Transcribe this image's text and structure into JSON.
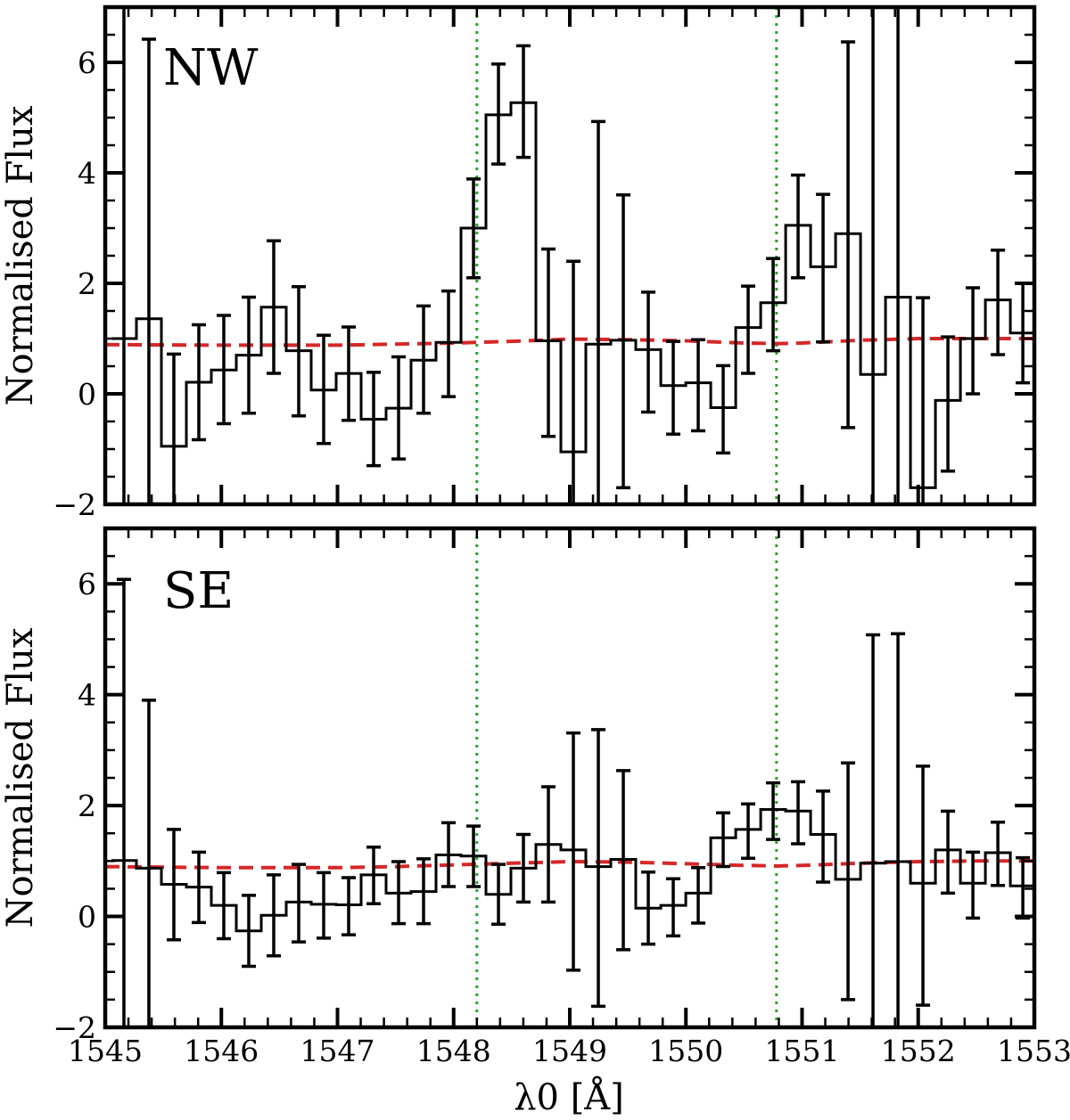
{
  "chart_data": {
    "type": "line",
    "xlabel": "λ0 [Å]",
    "ylabel": "Normalised Flux",
    "xlim": [
      1545,
      1553
    ],
    "ylim": [
      -2,
      7
    ],
    "x_ticks": [
      "1545",
      "1546",
      "1547",
      "1548",
      "1549",
      "1550",
      "1551",
      "1552",
      "1553"
    ],
    "y_ticks": [
      "−2",
      "0",
      "2",
      "4",
      "6"
    ],
    "y_tick_values": [
      -2,
      0,
      2,
      4,
      6
    ],
    "x_tick_values": [
      1545,
      1546,
      1547,
      1548,
      1549,
      1550,
      1551,
      1552,
      1553
    ],
    "bin_start": 1545.161,
    "bin_width": 0.215,
    "reference_lines": [
      1548.2,
      1550.78
    ],
    "model_x": [
      1545,
      1546,
      1547,
      1547.5,
      1548,
      1548.5,
      1549,
      1549.5,
      1550,
      1550.5,
      1550.8,
      1551,
      1551.5,
      1552,
      1552.5,
      1553
    ],
    "colors": {
      "data": "#000000",
      "model": "#d62728",
      "reference": "#2ca02c"
    },
    "panels": [
      {
        "label": "NW",
        "flux": [
          1.0,
          1.36,
          -0.95,
          0.21,
          0.43,
          0.7,
          1.57,
          0.78,
          0.07,
          0.37,
          -0.46,
          -0.26,
          0.61,
          0.93,
          3.0,
          5.05,
          5.27,
          0.96,
          -1.05,
          0.9,
          0.97,
          0.8,
          0.15,
          0.2,
          -0.25,
          1.2,
          1.65,
          3.05,
          2.3,
          2.9,
          0.35,
          1.75,
          -1.7,
          -0.12,
          1.0,
          1.7,
          1.1
        ],
        "err_lo": [
          -5,
          -5,
          -3,
          -0.83,
          -0.54,
          -0.35,
          0.37,
          -0.4,
          -0.9,
          -0.48,
          -1.3,
          -1.18,
          -0.35,
          -0.05,
          2.1,
          4.16,
          4.28,
          -0.77,
          -3,
          -4,
          -1.7,
          -0.33,
          -0.73,
          -0.67,
          -1.07,
          0.37,
          0.78,
          2.1,
          0.94,
          -0.61,
          -5,
          -5,
          -4,
          -1.4,
          0.0,
          0.71,
          0.2
        ],
        "err_hi": [
          10,
          6.42,
          0.72,
          1.25,
          1.42,
          1.75,
          2.77,
          1.94,
          1.06,
          1.21,
          0.39,
          0.67,
          1.59,
          1.86,
          3.89,
          5.97,
          6.3,
          2.62,
          2.4,
          4.93,
          3.6,
          1.84,
          0.95,
          0.98,
          0.51,
          1.95,
          2.45,
          3.96,
          3.61,
          6.37,
          10,
          10,
          1.74,
          1.03,
          1.92,
          2.6,
          2.0
        ],
        "model_y": [
          0.89,
          0.88,
          0.88,
          0.9,
          0.92,
          0.95,
          0.99,
          0.98,
          0.96,
          0.92,
          0.91,
          0.92,
          0.97,
          1.0,
          1.0,
          1.0
        ]
      },
      {
        "label": "SE",
        "flux": [
          1.01,
          0.87,
          0.58,
          0.53,
          0.2,
          -0.26,
          0.02,
          0.26,
          0.22,
          0.21,
          0.75,
          0.42,
          0.45,
          1.11,
          1.09,
          0.4,
          0.87,
          1.3,
          1.2,
          0.9,
          1.03,
          0.15,
          0.2,
          0.42,
          1.42,
          1.57,
          1.93,
          1.9,
          1.48,
          0.67,
          0.96,
          0.99,
          0.6,
          1.2,
          0.6,
          1.15,
          0.55
        ],
        "err_lo": [
          -5,
          -4,
          -0.42,
          -0.11,
          -0.4,
          -0.9,
          -0.71,
          -0.46,
          -0.39,
          -0.33,
          0.23,
          -0.13,
          -0.13,
          0.54,
          0.54,
          -0.14,
          0.26,
          0.26,
          -0.97,
          -1.62,
          -0.6,
          -0.5,
          -0.35,
          -0.12,
          0.9,
          1.05,
          1.39,
          1.31,
          0.62,
          -1.5,
          -4,
          -4,
          -1.6,
          0.42,
          -0.03,
          0.56,
          -0.03
        ],
        "err_hi": [
          6.08,
          3.9,
          1.57,
          1.16,
          0.79,
          0.38,
          0.75,
          0.94,
          0.79,
          0.7,
          1.25,
          0.99,
          1.04,
          1.69,
          1.63,
          0.94,
          1.48,
          2.34,
          3.31,
          3.37,
          2.63,
          0.8,
          0.68,
          0.88,
          1.87,
          2.03,
          2.41,
          2.43,
          2.26,
          2.77,
          5.08,
          5.1,
          2.71,
          1.9,
          1.16,
          1.7,
          1.06
        ],
        "model_y": [
          0.9,
          0.88,
          0.88,
          0.9,
          0.93,
          0.96,
          0.99,
          0.98,
          0.95,
          0.92,
          0.91,
          0.92,
          0.96,
          0.99,
          1.0,
          1.0
        ]
      }
    ]
  }
}
